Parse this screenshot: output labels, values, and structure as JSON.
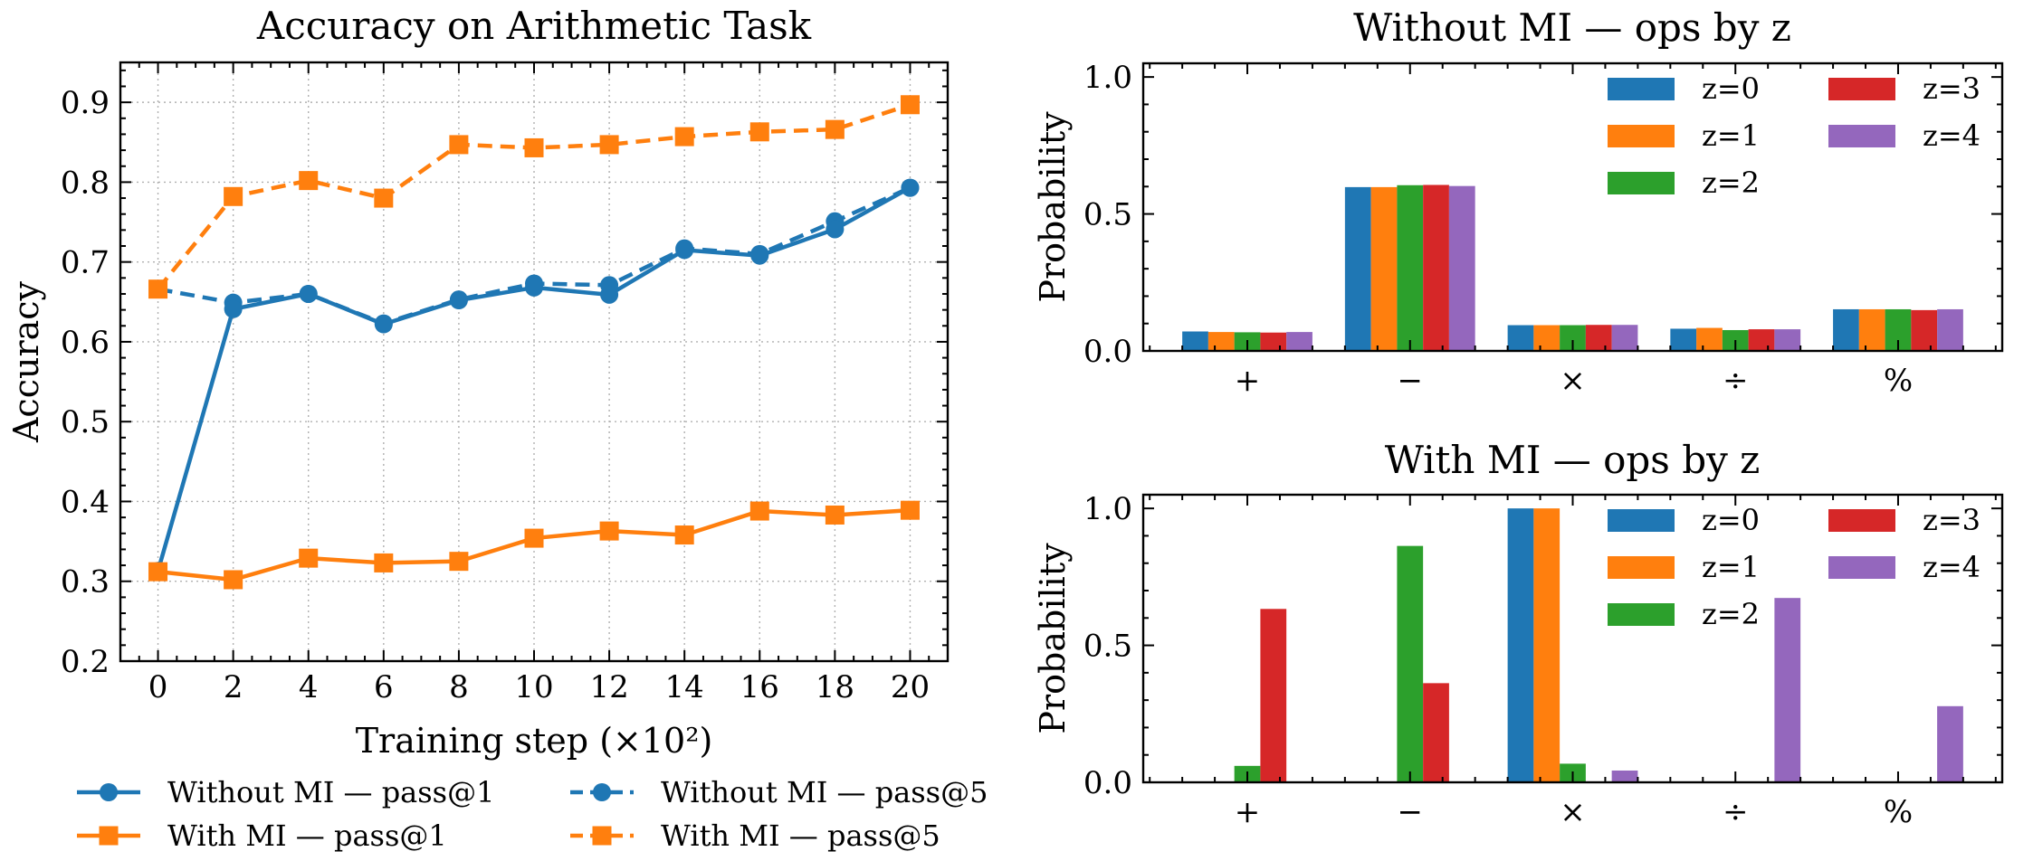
{
  "chart_data": [
    {
      "type": "line",
      "title": "Accuracy on Arithmetic Task",
      "xlabel": "Training step (×10²)",
      "ylabel": "Accuracy",
      "x": [
        0,
        2,
        4,
        6,
        8,
        10,
        12,
        14,
        16,
        18,
        20
      ],
      "xticks": [
        0,
        2,
        4,
        6,
        8,
        10,
        12,
        14,
        16,
        18,
        20
      ],
      "xtick_labels": [
        "0",
        "2",
        "4",
        "6",
        "8",
        "10",
        "12",
        "14",
        "16",
        "18",
        "20"
      ],
      "yticks": [
        0.2,
        0.3,
        0.4,
        0.5,
        0.6,
        0.7,
        0.8,
        0.9
      ],
      "ytick_labels": [
        "0.2",
        "0.3",
        "0.4",
        "0.5",
        "0.6",
        "0.7",
        "0.8",
        "0.9"
      ],
      "xlim": [
        -1,
        21
      ],
      "ylim": [
        0.2,
        0.95
      ],
      "x_minor_step": 0.5,
      "y_minor_step": 0.02,
      "grid": true,
      "legend_position": "below",
      "series": [
        {
          "name": "Without MI — pass@1",
          "color": "#1f77b4",
          "linestyle": "solid",
          "marker": "circle",
          "values": [
            0.313,
            0.641,
            0.66,
            0.622,
            0.652,
            0.668,
            0.659,
            0.715,
            0.708,
            0.741,
            0.793
          ]
        },
        {
          "name": "With MI — pass@1",
          "color": "#ff7f0e",
          "linestyle": "solid",
          "marker": "square",
          "values": [
            0.312,
            0.302,
            0.329,
            0.323,
            0.325,
            0.354,
            0.363,
            0.358,
            0.388,
            0.383,
            0.389
          ]
        },
        {
          "name": "Without MI — pass@5",
          "color": "#1f77b4",
          "linestyle": "dashed",
          "marker": "circle",
          "values": [
            0.666,
            0.649,
            0.66,
            0.623,
            0.653,
            0.673,
            0.671,
            0.717,
            0.71,
            0.751,
            0.793
          ]
        },
        {
          "name": "With MI — pass@5",
          "color": "#ff7f0e",
          "linestyle": "dashed",
          "marker": "square",
          "values": [
            0.666,
            0.782,
            0.802,
            0.78,
            0.847,
            0.843,
            0.847,
            0.857,
            0.863,
            0.866,
            0.897
          ]
        }
      ]
    },
    {
      "type": "bar",
      "title": "Without MI — ops by z",
      "xlabel": "",
      "ylabel": "Probability",
      "categories": [
        "+",
        "−",
        "×",
        "÷",
        "%"
      ],
      "yticks": [
        0.0,
        0.5,
        1.0
      ],
      "ytick_labels": [
        "0.0",
        "0.5",
        "1.0"
      ],
      "ylim": [
        0,
        1.05
      ],
      "y_minor_step": 0.1,
      "legend_position": "top-right",
      "legend_columns": 2,
      "series": [
        {
          "name": "z=0",
          "color": "#1f77b4",
          "values": [
            0.071,
            0.598,
            0.094,
            0.081,
            0.152
          ]
        },
        {
          "name": "z=1",
          "color": "#ff7f0e",
          "values": [
            0.069,
            0.598,
            0.094,
            0.084,
            0.152
          ]
        },
        {
          "name": "z=2",
          "color": "#2ca02c",
          "values": [
            0.068,
            0.605,
            0.094,
            0.076,
            0.152
          ]
        },
        {
          "name": "z=3",
          "color": "#d62728",
          "values": [
            0.067,
            0.606,
            0.095,
            0.079,
            0.149
          ]
        },
        {
          "name": "z=4",
          "color": "#9467bd",
          "values": [
            0.069,
            0.602,
            0.095,
            0.079,
            0.152
          ]
        }
      ]
    },
    {
      "type": "bar",
      "title": "With MI — ops by z",
      "xlabel": "",
      "ylabel": "Probability",
      "categories": [
        "+",
        "−",
        "×",
        "÷",
        "%"
      ],
      "yticks": [
        0.0,
        0.5,
        1.0
      ],
      "ytick_labels": [
        "0.0",
        "0.5",
        "1.0"
      ],
      "ylim": [
        0,
        1.05
      ],
      "y_minor_step": 0.1,
      "legend_position": "top-right",
      "legend_columns": 2,
      "series": [
        {
          "name": "z=0",
          "color": "#1f77b4",
          "values": [
            0.0,
            0.0,
            1.0,
            0.0,
            0.0
          ]
        },
        {
          "name": "z=1",
          "color": "#ff7f0e",
          "values": [
            0.0,
            0.0,
            1.0,
            0.0,
            0.0
          ]
        },
        {
          "name": "z=2",
          "color": "#2ca02c",
          "values": [
            0.06,
            0.863,
            0.068,
            0.0,
            0.0
          ]
        },
        {
          "name": "z=3",
          "color": "#d62728",
          "values": [
            0.633,
            0.362,
            0.0,
            0.0,
            0.0
          ]
        },
        {
          "name": "z=4",
          "color": "#9467bd",
          "values": [
            0.0,
            0.0,
            0.043,
            0.673,
            0.278
          ]
        }
      ]
    }
  ]
}
